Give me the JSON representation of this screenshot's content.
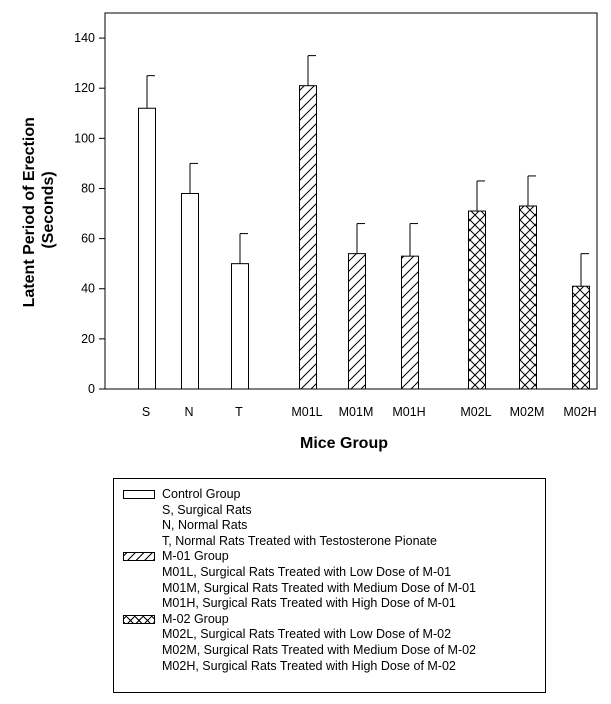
{
  "chart_data": {
    "type": "bar",
    "xlabel": "Mice Group",
    "ylabel_lines": [
      "Latent Period of Erection",
      "(Seconds)"
    ],
    "ylim": [
      0,
      150
    ],
    "yticks": [
      0,
      20,
      40,
      60,
      80,
      100,
      120,
      140
    ],
    "categories": [
      "S",
      "N",
      "T",
      "M01L",
      "M01M",
      "M01H",
      "M02L",
      "M02M",
      "M02H"
    ],
    "values": [
      112,
      78,
      50,
      121,
      54,
      53,
      71,
      73,
      41
    ],
    "errors": [
      13,
      12,
      12,
      12,
      12,
      13,
      12,
      12,
      13
    ],
    "group_of": [
      "control",
      "control",
      "control",
      "m01",
      "m01",
      "m01",
      "m02",
      "m02",
      "m02"
    ],
    "grid": false
  },
  "legend": {
    "groups": [
      {
        "key": "control",
        "pattern": "none",
        "title": "Control Group",
        "items": [
          "S, Surgical Rats",
          "N, Normal Rats",
          "T, Normal Rats Treated with Testosterone Pionate"
        ]
      },
      {
        "key": "m01",
        "pattern": "diagonal",
        "title": "M-01 Group",
        "items": [
          "M01L, Surgical Rats Treated with Low Dose of M-01",
          "M01M, Surgical Rats Treated with Medium Dose of M-01",
          "M01H, Surgical Rats Treated with High Dose of M-01"
        ]
      },
      {
        "key": "m02",
        "pattern": "crosshatch",
        "title": "M-02 Group",
        "items": [
          "M02L, Surgical Rats Treated with Low Dose of M-02",
          "M02M, Surgical Rats Treated with Medium Dose of M-02",
          "M02H, Surgical Rats Treated with High Dose of M-02"
        ]
      }
    ]
  }
}
